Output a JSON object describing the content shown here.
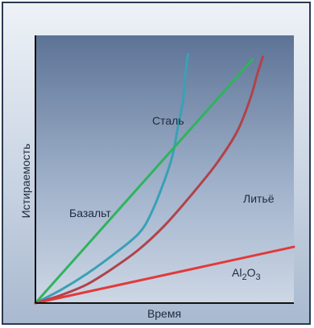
{
  "chart_data": {
    "type": "line",
    "xlabel": "Время",
    "ylabel": "Истираемость",
    "xlim": [
      0,
      100
    ],
    "ylim": [
      0,
      100
    ],
    "grid": false,
    "series": [
      {
        "name": "Сталь",
        "color": "#3aa0b6",
        "points": [
          [
            0,
            0
          ],
          [
            10,
            5
          ],
          [
            20,
            11
          ],
          [
            30,
            18
          ],
          [
            40,
            26
          ],
          [
            45,
            34
          ],
          [
            50,
            46
          ],
          [
            53,
            55
          ],
          [
            55,
            65
          ],
          [
            57,
            75
          ],
          [
            58,
            85
          ],
          [
            59,
            93
          ]
        ]
      },
      {
        "name": "Базальт",
        "color": "#2fb35e",
        "points": [
          [
            0,
            0
          ],
          [
            84,
            91
          ]
        ]
      },
      {
        "name": "Литьё",
        "color": "#b0434a",
        "points": [
          [
            0,
            0
          ],
          [
            10,
            3
          ],
          [
            20,
            7
          ],
          [
            30,
            13
          ],
          [
            40,
            20
          ],
          [
            50,
            29
          ],
          [
            60,
            40
          ],
          [
            70,
            52
          ],
          [
            78,
            64
          ],
          [
            83,
            76
          ],
          [
            86,
            86
          ],
          [
            88,
            92
          ]
        ]
      },
      {
        "name": "Al2O3",
        "label_main": "Al",
        "label_sub": "2",
        "label_main2": "O",
        "label_sub2": "3",
        "color": "#e23a3a",
        "points": [
          [
            0,
            0
          ],
          [
            100,
            21
          ]
        ]
      }
    ]
  }
}
